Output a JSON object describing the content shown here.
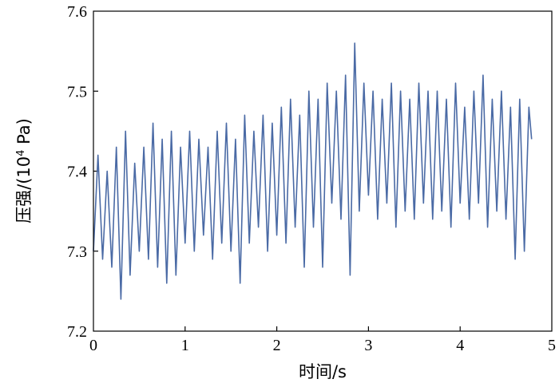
{
  "chart_data": {
    "type": "line",
    "title": "",
    "xlabel": "时间/s",
    "ylabel_main": "压强/(10",
    "ylabel_exp": "4",
    "ylabel_tail": " Pa)",
    "xlim": [
      0,
      5
    ],
    "ylim": [
      7.2,
      7.6
    ],
    "xticks": [
      "0",
      "1",
      "2",
      "3",
      "4",
      "5"
    ],
    "yticks": [
      "7.2",
      "7.3",
      "7.4",
      "7.5",
      "7.6"
    ],
    "grid": false,
    "series_color": "#4a6aa5",
    "series": [
      {
        "x": [
          0.0,
          0.05,
          0.1,
          0.15,
          0.2,
          0.25,
          0.3,
          0.35,
          0.4,
          0.45,
          0.5,
          0.55,
          0.6,
          0.65,
          0.7,
          0.75,
          0.8,
          0.85,
          0.9,
          0.95,
          1.0,
          1.05,
          1.1,
          1.15,
          1.2,
          1.25,
          1.3,
          1.35,
          1.4,
          1.45,
          1.5,
          1.55,
          1.6,
          1.65,
          1.7,
          1.75,
          1.8,
          1.85,
          1.9,
          1.95,
          2.0,
          2.05,
          2.1,
          2.15,
          2.2,
          2.25,
          2.3,
          2.35,
          2.4,
          2.45,
          2.5,
          2.55,
          2.6,
          2.65,
          2.7,
          2.75,
          2.8,
          2.85,
          2.9,
          2.95,
          3.0,
          3.05,
          3.1,
          3.15,
          3.2,
          3.25,
          3.3,
          3.35,
          3.4,
          3.45,
          3.5,
          3.55,
          3.6,
          3.65,
          3.7,
          3.75,
          3.8,
          3.85,
          3.9,
          3.95,
          4.0,
          4.05,
          4.1,
          4.15,
          4.2,
          4.25,
          4.3,
          4.35,
          4.4,
          4.45,
          4.5,
          4.55,
          4.6,
          4.65,
          4.7,
          4.75,
          4.78
        ],
        "y": [
          7.3,
          7.42,
          7.29,
          7.4,
          7.28,
          7.43,
          7.24,
          7.45,
          7.27,
          7.41,
          7.3,
          7.43,
          7.29,
          7.46,
          7.28,
          7.44,
          7.26,
          7.45,
          7.27,
          7.43,
          7.31,
          7.45,
          7.3,
          7.44,
          7.32,
          7.43,
          7.29,
          7.45,
          7.31,
          7.46,
          7.3,
          7.44,
          7.26,
          7.47,
          7.31,
          7.45,
          7.33,
          7.47,
          7.3,
          7.46,
          7.32,
          7.48,
          7.31,
          7.49,
          7.33,
          7.47,
          7.28,
          7.5,
          7.33,
          7.49,
          7.28,
          7.51,
          7.36,
          7.5,
          7.34,
          7.52,
          7.27,
          7.56,
          7.35,
          7.51,
          7.37,
          7.5,
          7.34,
          7.49,
          7.36,
          7.51,
          7.33,
          7.5,
          7.35,
          7.49,
          7.34,
          7.51,
          7.36,
          7.5,
          7.34,
          7.5,
          7.35,
          7.49,
          7.33,
          7.51,
          7.36,
          7.48,
          7.34,
          7.5,
          7.36,
          7.52,
          7.33,
          7.49,
          7.35,
          7.5,
          7.34,
          7.48,
          7.29,
          7.49,
          7.3,
          7.48,
          7.44
        ]
      }
    ]
  }
}
